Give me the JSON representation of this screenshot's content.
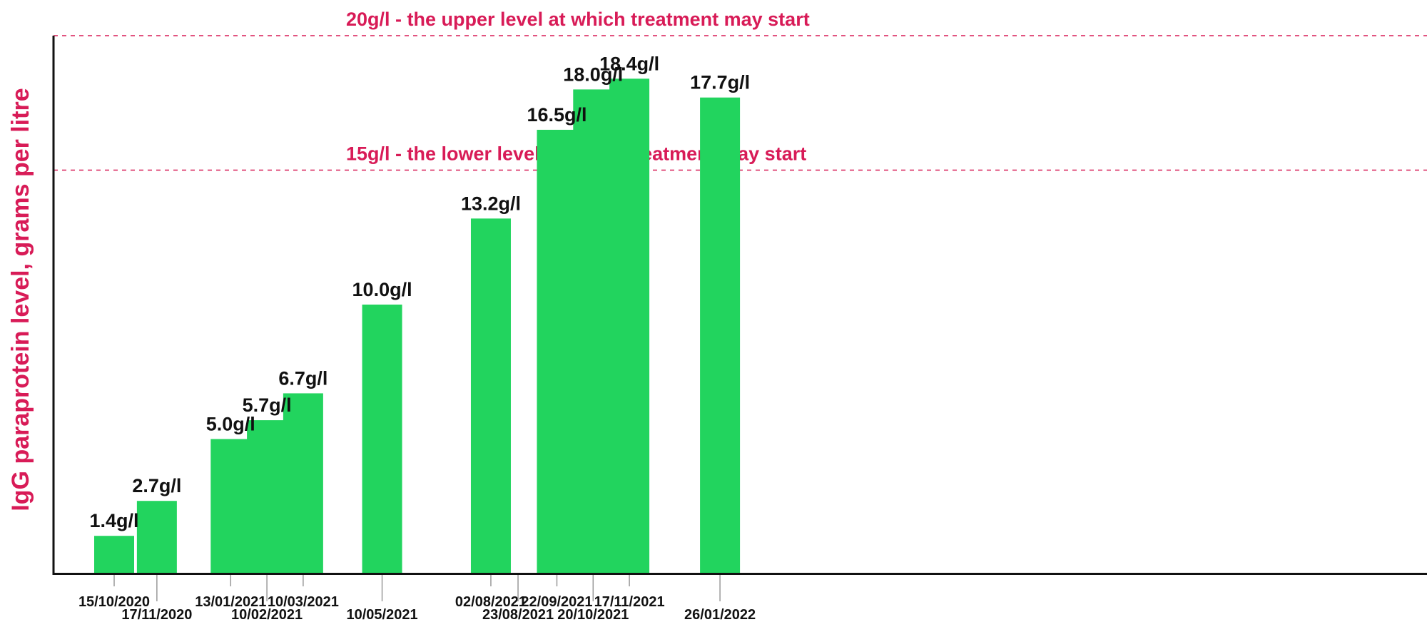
{
  "chart_data": {
    "type": "bar",
    "ylabel": "IgG paraprotein level, grams per litre",
    "ylim": [
      0,
      20
    ],
    "grid": false,
    "dates": [
      "15/10/2020",
      "17/11/2020",
      "13/01/2021",
      "10/02/2021",
      "10/03/2021",
      "10/05/2021",
      "02/08/2021",
      "23/08/2021",
      "22/09/2021",
      "20/10/2021",
      "17/11/2021",
      "26/01/2022"
    ],
    "bars": [
      {
        "date": "15/10/2020",
        "value": 1.4,
        "label": "1.4g/l"
      },
      {
        "date": "17/11/2020",
        "value": 2.7,
        "label": "2.7g/l"
      },
      {
        "date": "13/01/2021",
        "value": 5.0,
        "label": "5.0g/l"
      },
      {
        "date": "10/02/2021",
        "value": 5.7,
        "label": "5.7g/l"
      },
      {
        "date": "10/03/2021",
        "value": 6.7,
        "label": "6.7g/l"
      },
      {
        "date": "10/05/2021",
        "value": 10.0,
        "label": "10.0g/l"
      },
      {
        "date": "02/08/2021",
        "value": 13.2,
        "label": "13.2g/l"
      },
      {
        "date": "22/09/2021",
        "value": 16.5,
        "label": "16.5g/l"
      },
      {
        "date": "20/10/2021",
        "value": 18.0,
        "label": "18.0g/l"
      },
      {
        "date": "17/11/2021",
        "value": 18.4,
        "label": "18.4g/l"
      },
      {
        "date": "26/01/2022",
        "value": 17.7,
        "label": "17.7g/l"
      }
    ],
    "reference_lines": [
      {
        "value": 20,
        "label": "20g/l - the upper level at which treatment may start"
      },
      {
        "value": 15,
        "label": "15g/l - the lower level at which treatment may start"
      }
    ]
  },
  "colors": {
    "bar": "#22d45e",
    "accent": "#d81b57",
    "axis": "#111111",
    "tick": "#999999"
  }
}
